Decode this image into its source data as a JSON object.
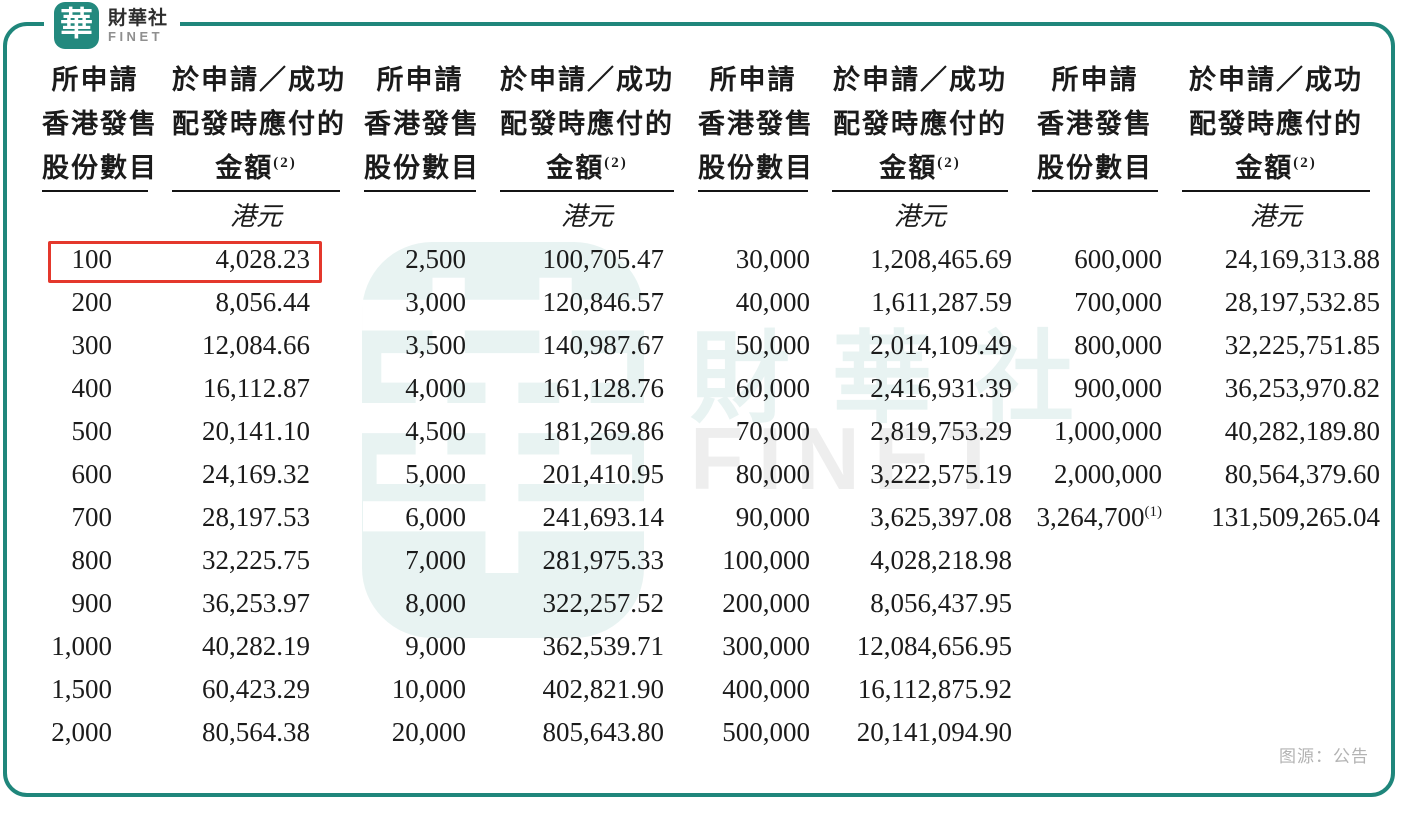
{
  "brand": {
    "logo_glyph": "華",
    "name_cn": "財華社",
    "name_en": "FINET"
  },
  "watermark": {
    "logo_glyph": "華",
    "name_cn": "財華社",
    "name_en": "FINET"
  },
  "source_note": "图源：公告",
  "colors": {
    "frame_teal": "#1f867b",
    "logo_teal": "#23897e",
    "highlight_red": "#e4382c",
    "text": "#1b1b1b",
    "note_gray": "#b3b3b3"
  },
  "table": {
    "shares_header_lines": [
      "所申請",
      "香港發售",
      "股份數目"
    ],
    "amount_header_lines": [
      "於申請／成功",
      "配發時應付的",
      "金額"
    ],
    "amount_header_sup": "(2)",
    "currency": "港元",
    "groups": [
      {
        "rows": [
          {
            "shares": "100",
            "amount": "4,028.23",
            "highlight": true
          },
          {
            "shares": "200",
            "amount": "8,056.44"
          },
          {
            "shares": "300",
            "amount": "12,084.66"
          },
          {
            "shares": "400",
            "amount": "16,112.87"
          },
          {
            "shares": "500",
            "amount": "20,141.10"
          },
          {
            "shares": "600",
            "amount": "24,169.32"
          },
          {
            "shares": "700",
            "amount": "28,197.53"
          },
          {
            "shares": "800",
            "amount": "32,225.75"
          },
          {
            "shares": "900",
            "amount": "36,253.97"
          },
          {
            "shares": "1,000",
            "amount": "40,282.19"
          },
          {
            "shares": "1,500",
            "amount": "60,423.29"
          },
          {
            "shares": "2,000",
            "amount": "80,564.38"
          }
        ]
      },
      {
        "rows": [
          {
            "shares": "2,500",
            "amount": "100,705.47"
          },
          {
            "shares": "3,000",
            "amount": "120,846.57"
          },
          {
            "shares": "3,500",
            "amount": "140,987.67"
          },
          {
            "shares": "4,000",
            "amount": "161,128.76"
          },
          {
            "shares": "4,500",
            "amount": "181,269.86"
          },
          {
            "shares": "5,000",
            "amount": "201,410.95"
          },
          {
            "shares": "6,000",
            "amount": "241,693.14"
          },
          {
            "shares": "7,000",
            "amount": "281,975.33"
          },
          {
            "shares": "8,000",
            "amount": "322,257.52"
          },
          {
            "shares": "9,000",
            "amount": "362,539.71"
          },
          {
            "shares": "10,000",
            "amount": "402,821.90"
          },
          {
            "shares": "20,000",
            "amount": "805,643.80"
          }
        ]
      },
      {
        "rows": [
          {
            "shares": "30,000",
            "amount": "1,208,465.69"
          },
          {
            "shares": "40,000",
            "amount": "1,611,287.59"
          },
          {
            "shares": "50,000",
            "amount": "2,014,109.49"
          },
          {
            "shares": "60,000",
            "amount": "2,416,931.39"
          },
          {
            "shares": "70,000",
            "amount": "2,819,753.29"
          },
          {
            "shares": "80,000",
            "amount": "3,222,575.19"
          },
          {
            "shares": "90,000",
            "amount": "3,625,397.08"
          },
          {
            "shares": "100,000",
            "amount": "4,028,218.98"
          },
          {
            "shares": "200,000",
            "amount": "8,056,437.95"
          },
          {
            "shares": "300,000",
            "amount": "12,084,656.95"
          },
          {
            "shares": "400,000",
            "amount": "16,112,875.92"
          },
          {
            "shares": "500,000",
            "amount": "20,141,094.90"
          }
        ]
      },
      {
        "rows": [
          {
            "shares": "600,000",
            "amount": "24,169,313.88"
          },
          {
            "shares": "700,000",
            "amount": "28,197,532.85"
          },
          {
            "shares": "800,000",
            "amount": "32,225,751.85"
          },
          {
            "shares": "900,000",
            "amount": "36,253,970.82"
          },
          {
            "shares": "1,000,000",
            "amount": "40,282,189.80"
          },
          {
            "shares": "2,000,000",
            "amount": "80,564,379.60"
          },
          {
            "shares": "3,264,700",
            "shares_sup": "(1)",
            "amount": "131,509,265.04"
          }
        ]
      }
    ]
  }
}
